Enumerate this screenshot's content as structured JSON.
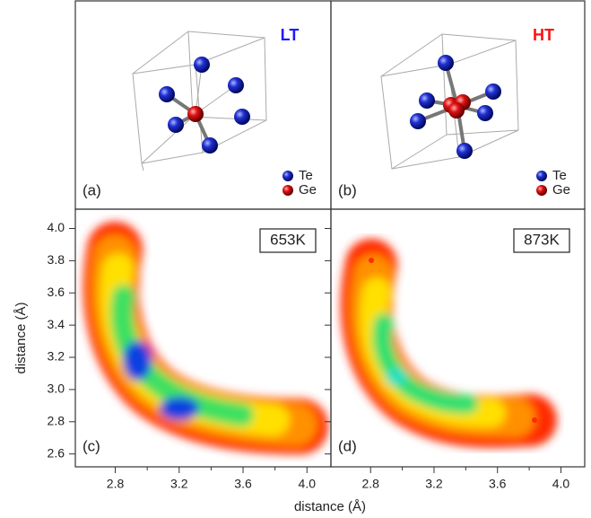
{
  "structures": [
    {
      "panel_label": "(a)",
      "phase": "LT",
      "legend": [
        "Te",
        "Ge"
      ]
    },
    {
      "panel_label": "(b)",
      "phase": "HT",
      "legend": [
        "Te",
        "Ge"
      ]
    }
  ],
  "chart_data": [
    {
      "type": "density",
      "panel_label": "(c)",
      "annotation": "653K",
      "x_label": "distance (Å)",
      "y_label": "distance (Å)",
      "xlim": [
        2.55,
        4.15
      ],
      "ylim": [
        2.52,
        4.12
      ],
      "xticks": [
        2.8,
        3.2,
        3.6,
        {
          "value": 4,
          "label": "4.0"
        }
      ],
      "yticks": [
        2.6,
        2.8,
        {
          "value": 3,
          "label": "3.0"
        },
        3.2,
        3.4,
        3.6,
        3.8,
        {
          "value": 4,
          "label": "4.0"
        }
      ]
    },
    {
      "type": "density",
      "panel_label": "(d)",
      "annotation": "873K",
      "xlim": [
        2.55,
        4.15
      ],
      "ylim": [
        2.52,
        4.12
      ],
      "xticks": [
        2.8,
        3.2,
        3.6,
        {
          "value": 4,
          "label": "4.0"
        }
      ],
      "yticks": [
        2.6,
        2.8,
        3,
        3.2,
        3.4,
        3.6,
        3.8,
        4
      ]
    }
  ]
}
